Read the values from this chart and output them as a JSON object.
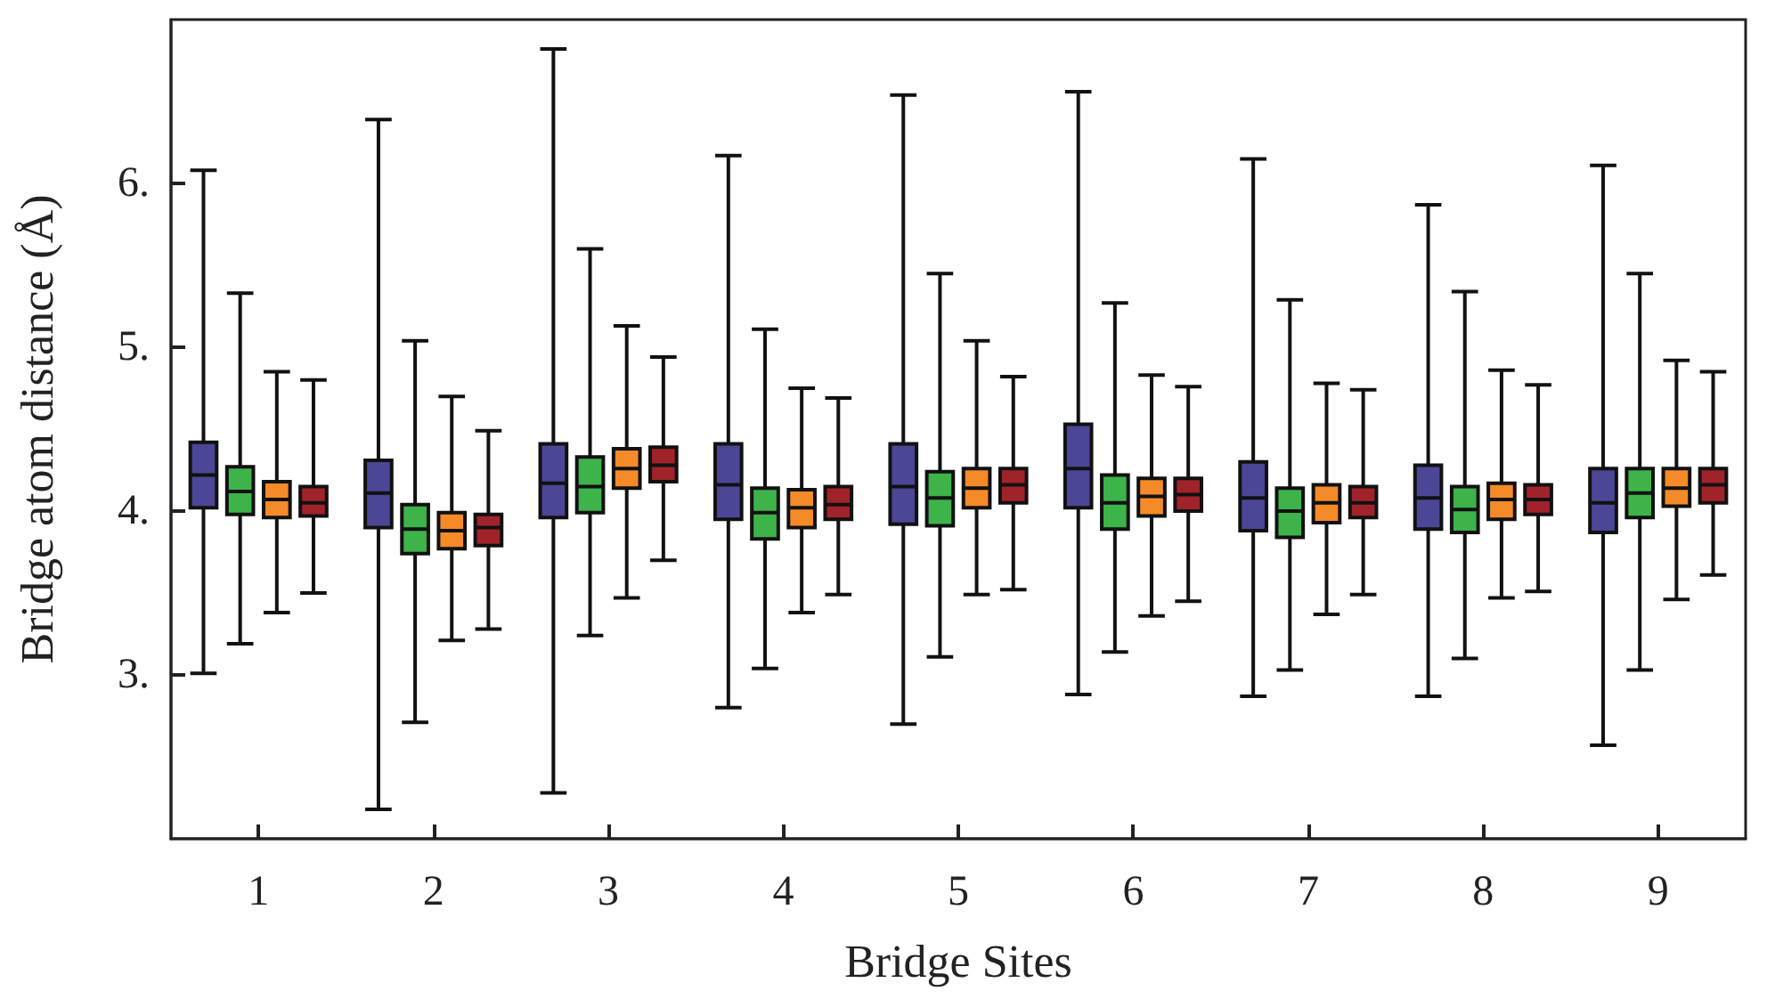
{
  "chart_data": {
    "type": "box",
    "xlabel": "Bridge Sites",
    "ylabel": "Bridge atom distance (Å)",
    "categories": [
      "1",
      "2",
      "3",
      "4",
      "5",
      "6",
      "7",
      "8",
      "9"
    ],
    "ylim": [
      2,
      7
    ],
    "yticks": [
      {
        "value": 3,
        "label": "3."
      },
      {
        "value": 4,
        "label": "4."
      },
      {
        "value": 5,
        "label": "5."
      },
      {
        "value": 6,
        "label": "6."
      }
    ],
    "grid": false,
    "series": [
      {
        "color": "#4b4696",
        "boxes": [
          {
            "low": 3.01,
            "q1": 4.02,
            "median": 4.22,
            "q3": 4.42,
            "high": 6.08
          },
          {
            "low": 2.18,
            "q1": 3.9,
            "median": 4.11,
            "q3": 4.31,
            "high": 6.39
          },
          {
            "low": 2.28,
            "q1": 3.96,
            "median": 4.17,
            "q3": 4.41,
            "high": 6.82
          },
          {
            "low": 2.8,
            "q1": 3.95,
            "median": 4.16,
            "q3": 4.41,
            "high": 6.17
          },
          {
            "low": 2.7,
            "q1": 3.92,
            "median": 4.15,
            "q3": 4.41,
            "high": 6.54
          },
          {
            "low": 2.88,
            "q1": 4.02,
            "median": 4.26,
            "q3": 4.53,
            "high": 6.56
          },
          {
            "low": 2.87,
            "q1": 3.88,
            "median": 4.08,
            "q3": 4.3,
            "high": 6.15
          },
          {
            "low": 2.87,
            "q1": 3.89,
            "median": 4.08,
            "q3": 4.28,
            "high": 5.87
          },
          {
            "low": 2.57,
            "q1": 3.87,
            "median": 4.05,
            "q3": 4.26,
            "high": 6.11
          }
        ]
      },
      {
        "color": "#3db34a",
        "boxes": [
          {
            "low": 3.19,
            "q1": 3.98,
            "median": 4.12,
            "q3": 4.27,
            "high": 5.33
          },
          {
            "low": 2.71,
            "q1": 3.74,
            "median": 3.89,
            "q3": 4.04,
            "high": 5.04
          },
          {
            "low": 3.24,
            "q1": 3.99,
            "median": 4.15,
            "q3": 4.33,
            "high": 5.6
          },
          {
            "low": 3.04,
            "q1": 3.83,
            "median": 3.99,
            "q3": 4.14,
            "high": 5.11
          },
          {
            "low": 3.11,
            "q1": 3.91,
            "median": 4.08,
            "q3": 4.24,
            "high": 5.45
          },
          {
            "low": 3.14,
            "q1": 3.89,
            "median": 4.05,
            "q3": 4.22,
            "high": 5.27
          },
          {
            "low": 3.03,
            "q1": 3.84,
            "median": 4.0,
            "q3": 4.14,
            "high": 5.29
          },
          {
            "low": 3.1,
            "q1": 3.87,
            "median": 4.01,
            "q3": 4.15,
            "high": 5.34
          },
          {
            "low": 3.03,
            "q1": 3.96,
            "median": 4.11,
            "q3": 4.26,
            "high": 5.45
          }
        ]
      },
      {
        "color": "#f58a28",
        "boxes": [
          {
            "low": 3.38,
            "q1": 3.96,
            "median": 4.07,
            "q3": 4.18,
            "high": 4.85
          },
          {
            "low": 3.21,
            "q1": 3.77,
            "median": 3.88,
            "q3": 3.99,
            "high": 4.7
          },
          {
            "low": 3.47,
            "q1": 4.14,
            "median": 4.26,
            "q3": 4.38,
            "high": 5.13
          },
          {
            "low": 3.38,
            "q1": 3.9,
            "median": 4.02,
            "q3": 4.13,
            "high": 4.75
          },
          {
            "low": 3.49,
            "q1": 4.02,
            "median": 4.14,
            "q3": 4.26,
            "high": 5.04
          },
          {
            "low": 3.36,
            "q1": 3.97,
            "median": 4.09,
            "q3": 4.2,
            "high": 4.83
          },
          {
            "low": 3.37,
            "q1": 3.93,
            "median": 4.05,
            "q3": 4.16,
            "high": 4.78
          },
          {
            "low": 3.47,
            "q1": 3.95,
            "median": 4.07,
            "q3": 4.17,
            "high": 4.86
          },
          {
            "low": 3.46,
            "q1": 4.03,
            "median": 4.14,
            "q3": 4.26,
            "high": 4.92
          }
        ]
      },
      {
        "color": "#a0232a",
        "boxes": [
          {
            "low": 3.5,
            "q1": 3.97,
            "median": 4.05,
            "q3": 4.15,
            "high": 4.8
          },
          {
            "low": 3.28,
            "q1": 3.79,
            "median": 3.9,
            "q3": 3.98,
            "high": 4.49
          },
          {
            "low": 3.7,
            "q1": 4.18,
            "median": 4.28,
            "q3": 4.39,
            "high": 4.94
          },
          {
            "low": 3.49,
            "q1": 3.95,
            "median": 4.04,
            "q3": 4.15,
            "high": 4.69
          },
          {
            "low": 3.52,
            "q1": 4.05,
            "median": 4.16,
            "q3": 4.26,
            "high": 4.82
          },
          {
            "low": 3.45,
            "q1": 4.0,
            "median": 4.1,
            "q3": 4.2,
            "high": 4.76
          },
          {
            "low": 3.49,
            "q1": 3.96,
            "median": 4.05,
            "q3": 4.15,
            "high": 4.74
          },
          {
            "low": 3.51,
            "q1": 3.98,
            "median": 4.07,
            "q3": 4.16,
            "high": 4.77
          },
          {
            "low": 3.61,
            "q1": 4.05,
            "median": 4.16,
            "q3": 4.26,
            "high": 4.85
          }
        ]
      }
    ]
  }
}
